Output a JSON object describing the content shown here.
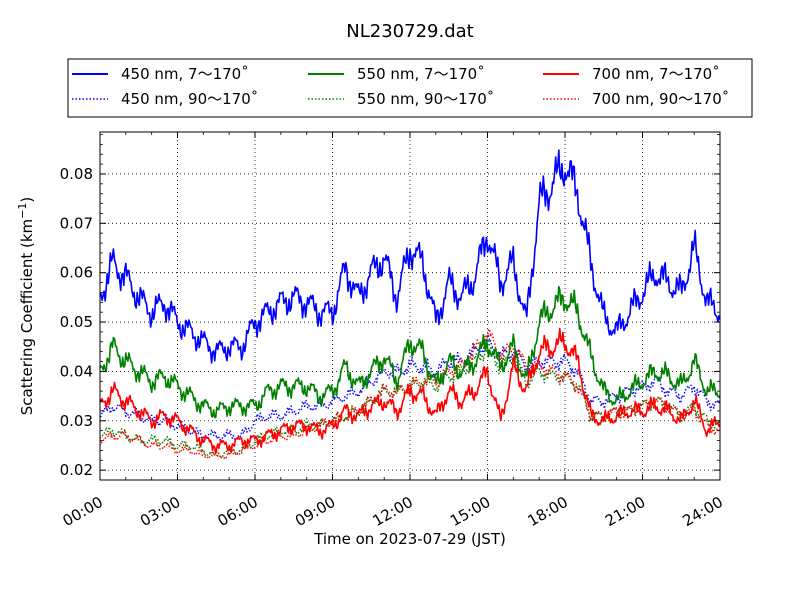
{
  "chart_data": {
    "type": "line",
    "title": "NL230729.dat",
    "xlabel": "Time on 2023-07-29 (JST)",
    "ylabel": "Scattering Coefficient (km",
    "ylabel_exponent": "−1",
    "ylabel_close": ")",
    "x_unit": "hour",
    "xlim": [
      0,
      24
    ],
    "ylim": [
      0.018,
      0.0885
    ],
    "x_ticks": [
      0,
      3,
      6,
      9,
      12,
      15,
      18,
      21,
      24
    ],
    "x_tick_labels": [
      "00:00",
      "03:00",
      "06:00",
      "09:00",
      "12:00",
      "15:00",
      "18:00",
      "21:00",
      "24:00"
    ],
    "y_ticks": [
      0.02,
      0.03,
      0.04,
      0.05,
      0.06,
      0.07,
      0.08
    ],
    "y_tick_labels": [
      "0.02",
      "0.03",
      "0.04",
      "0.05",
      "0.06",
      "0.07",
      "0.08"
    ],
    "grid": true,
    "legend_position": "top",
    "x": [
      0,
      0.5,
      1,
      1.5,
      2,
      2.5,
      3,
      3.5,
      4,
      4.5,
      5,
      5.5,
      6,
      6.5,
      7,
      7.5,
      8,
      8.5,
      9,
      9.5,
      10,
      10.5,
      11,
      11.5,
      12,
      12.5,
      13,
      13.5,
      14,
      14.5,
      15,
      15.5,
      16,
      16.5,
      17,
      17.5,
      18,
      18.5,
      19,
      19.5,
      20,
      20.5,
      21,
      21.5,
      22,
      22.5,
      23,
      23.5,
      24
    ],
    "series": [
      {
        "name": "450 nm, 7～170˚",
        "color": "#0000ff",
        "style": "solid",
        "values": [
          0.055,
          0.062,
          0.059,
          0.055,
          0.052,
          0.054,
          0.05,
          0.048,
          0.046,
          0.044,
          0.045,
          0.045,
          0.05,
          0.052,
          0.054,
          0.055,
          0.054,
          0.052,
          0.052,
          0.061,
          0.055,
          0.06,
          0.063,
          0.055,
          0.065,
          0.062,
          0.05,
          0.058,
          0.055,
          0.059,
          0.068,
          0.058,
          0.062,
          0.05,
          0.074,
          0.078,
          0.082,
          0.076,
          0.062,
          0.051,
          0.048,
          0.052,
          0.056,
          0.06,
          0.058,
          0.056,
          0.065,
          0.054,
          0.052
        ]
      },
      {
        "name": "450 nm, 90～170˚",
        "color": "#0000ff",
        "style": "dotted",
        "values": [
          0.031,
          0.033,
          0.032,
          0.031,
          0.03,
          0.03,
          0.029,
          0.028,
          0.027,
          0.027,
          0.027,
          0.027,
          0.03,
          0.031,
          0.031,
          0.032,
          0.033,
          0.033,
          0.034,
          0.035,
          0.036,
          0.038,
          0.04,
          0.04,
          0.041,
          0.041,
          0.04,
          0.042,
          0.042,
          0.044,
          0.046,
          0.043,
          0.044,
          0.041,
          0.042,
          0.042,
          0.042,
          0.04,
          0.034,
          0.034,
          0.035,
          0.036,
          0.037,
          0.038,
          0.036,
          0.035,
          0.037,
          0.034,
          0.033
        ]
      },
      {
        "name": "550 nm, 7～170˚",
        "color": "#008000",
        "style": "solid",
        "values": [
          0.04,
          0.045,
          0.042,
          0.04,
          0.038,
          0.039,
          0.037,
          0.035,
          0.033,
          0.032,
          0.033,
          0.033,
          0.033,
          0.036,
          0.037,
          0.037,
          0.037,
          0.035,
          0.036,
          0.041,
          0.037,
          0.04,
          0.043,
          0.038,
          0.046,
          0.044,
          0.037,
          0.042,
          0.04,
          0.042,
          0.046,
          0.041,
          0.045,
          0.038,
          0.05,
          0.053,
          0.055,
          0.052,
          0.043,
          0.036,
          0.034,
          0.036,
          0.038,
          0.04,
          0.039,
          0.037,
          0.042,
          0.036,
          0.036
        ]
      },
      {
        "name": "550 nm, 90～170˚",
        "color": "#008000",
        "style": "dotted",
        "values": [
          0.027,
          0.028,
          0.027,
          0.026,
          0.026,
          0.026,
          0.025,
          0.025,
          0.024,
          0.023,
          0.024,
          0.024,
          0.026,
          0.027,
          0.028,
          0.028,
          0.029,
          0.029,
          0.03,
          0.031,
          0.032,
          0.034,
          0.036,
          0.036,
          0.037,
          0.038,
          0.037,
          0.039,
          0.04,
          0.042,
          0.045,
          0.041,
          0.043,
          0.038,
          0.04,
          0.039,
          0.039,
          0.037,
          0.031,
          0.031,
          0.032,
          0.032,
          0.033,
          0.034,
          0.033,
          0.031,
          0.033,
          0.03,
          0.029
        ]
      },
      {
        "name": "700 nm, 7～170˚",
        "color": "#ff0000",
        "style": "solid",
        "values": [
          0.033,
          0.036,
          0.034,
          0.032,
          0.03,
          0.031,
          0.03,
          0.028,
          0.026,
          0.025,
          0.025,
          0.026,
          0.026,
          0.027,
          0.028,
          0.029,
          0.029,
          0.028,
          0.029,
          0.032,
          0.031,
          0.033,
          0.034,
          0.032,
          0.036,
          0.035,
          0.031,
          0.036,
          0.034,
          0.036,
          0.04,
          0.03,
          0.041,
          0.036,
          0.044,
          0.045,
          0.046,
          0.042,
          0.031,
          0.03,
          0.031,
          0.032,
          0.032,
          0.033,
          0.032,
          0.03,
          0.034,
          0.028,
          0.03
        ]
      },
      {
        "name": "700 nm, 90～170˚",
        "color": "#ff0000",
        "style": "dotted",
        "values": [
          0.026,
          0.027,
          0.027,
          0.026,
          0.025,
          0.025,
          0.024,
          0.024,
          0.023,
          0.023,
          0.023,
          0.024,
          0.025,
          0.026,
          0.027,
          0.027,
          0.028,
          0.029,
          0.03,
          0.031,
          0.032,
          0.034,
          0.036,
          0.036,
          0.037,
          0.038,
          0.038,
          0.04,
          0.041,
          0.044,
          0.048,
          0.043,
          0.045,
          0.041,
          0.041,
          0.04,
          0.039,
          0.037,
          0.031,
          0.031,
          0.032,
          0.032,
          0.033,
          0.034,
          0.033,
          0.031,
          0.032,
          0.029,
          0.028
        ]
      }
    ]
  }
}
